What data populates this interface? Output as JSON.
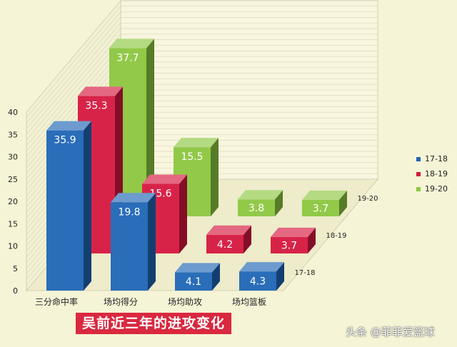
{
  "chart_data": {
    "type": "bar",
    "title": "吴前近三年的进攻变化",
    "categories": [
      "三分命中率",
      "场均得分",
      "场均助攻",
      "场均篮板"
    ],
    "depth_labels": [
      "17-18",
      "18-19",
      "19-20"
    ],
    "ylim": [
      0,
      40
    ],
    "yticks": [
      0,
      5,
      10,
      15,
      20,
      25,
      30,
      35,
      40
    ],
    "series": [
      {
        "name": "17-18",
        "values": [
          35.9,
          19.8,
          4.1,
          4.3
        ],
        "color": "#1f65b5"
      },
      {
        "name": "18-19",
        "values": [
          35.3,
          15.6,
          4.2,
          3.7
        ],
        "color": "#d6173f"
      },
      {
        "name": "19-20",
        "values": [
          37.7,
          15.5,
          3.8,
          3.7
        ],
        "color": "#8cc63f"
      }
    ],
    "data_labels": [
      [
        "35.9",
        "19.8",
        "4.1",
        "4.3"
      ],
      [
        "35.3",
        "15.6",
        "4.2",
        "3.7"
      ],
      [
        "37.7",
        "15.5",
        "3.8",
        "3.7"
      ]
    ],
    "legend_position": "right",
    "grid": true
  },
  "watermark": "头条 @菲菲爱篮球"
}
